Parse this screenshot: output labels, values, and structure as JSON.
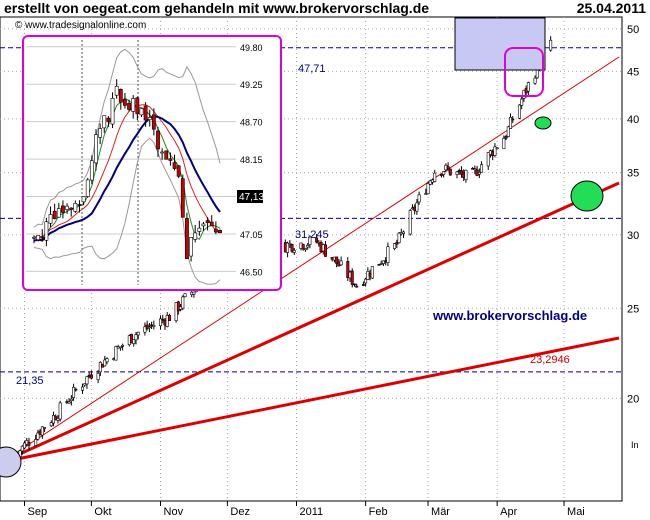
{
  "header": {
    "title": "erstellt von oegeat.com gehandeln mit www.brokervorschlag.de",
    "date": "25.04.2011"
  },
  "watermark": "© www.tradesignalonline.com",
  "colors": {
    "candle_up": "#ffffff",
    "candle_down": "#cc0000",
    "candle_outline": "#000000",
    "trendline": "#dd0000",
    "annotation_box": "#dd00dd",
    "marker_green": "#22dd55",
    "label_blue": "#000080",
    "label_red": "#cc0000",
    "grid": "#aaaaaa"
  },
  "chart_data": [
    {
      "type": "candlestick",
      "title": "",
      "y_unit_label": "In",
      "x_labels": [
        "Sep",
        "Okt",
        "Nov",
        "Dez",
        "2011",
        "Feb",
        "Mär",
        "Apr",
        "Mai"
      ],
      "y_ticks": [
        20,
        25,
        30,
        35,
        40,
        45,
        50
      ],
      "ylim": [
        15.5,
        51.5
      ],
      "log_scale": true,
      "grid": true,
      "watermark": "www.brokervorschlag.de",
      "horizontal_levels": [
        {
          "value": 47.71,
          "label": "47,71"
        },
        {
          "value": 31.245,
          "label": "31,245"
        },
        {
          "value": 21.35,
          "label": "21,35"
        }
      ],
      "trendline_labels": [
        {
          "label": "23,2946"
        }
      ],
      "approx_close_path": [
        [
          "2010-08-27",
          17.3
        ],
        [
          "2010-09-15",
          19.2
        ],
        [
          "2010-10-01",
          21.3
        ],
        [
          "2010-10-20",
          23.4
        ],
        [
          "2010-11-05",
          24.5
        ],
        [
          "2010-11-20",
          26.8
        ],
        [
          "2010-12-05",
          28.0
        ],
        [
          "2010-12-25",
          29.2
        ],
        [
          "2011-01-10",
          29.5
        ],
        [
          "2011-01-28",
          26.5
        ],
        [
          "2011-02-15",
          29.3
        ],
        [
          "2011-03-05",
          35.5
        ],
        [
          "2011-03-20",
          34.5
        ],
        [
          "2011-04-05",
          38.5
        ],
        [
          "2011-04-25",
          48.5
        ]
      ]
    },
    {
      "type": "candlestick",
      "title": "",
      "inset": true,
      "y_ticks": [
        46.5,
        47.05,
        47.6,
        48.15,
        48.7,
        49.25,
        49.8
      ],
      "last_price_label": "47,13",
      "moving_averages": [
        "green",
        "red",
        "navy"
      ],
      "bollinger_bands": true,
      "approx_close_path": [
        [
          0,
          46.95
        ],
        [
          5,
          47.3
        ],
        [
          12,
          47.6
        ],
        [
          15,
          48.4
        ],
        [
          20,
          49.1
        ],
        [
          26,
          48.9
        ],
        [
          30,
          48.4
        ],
        [
          35,
          47.9
        ],
        [
          37,
          46.8
        ],
        [
          40,
          47.2
        ],
        [
          45,
          47.13
        ]
      ]
    }
  ]
}
